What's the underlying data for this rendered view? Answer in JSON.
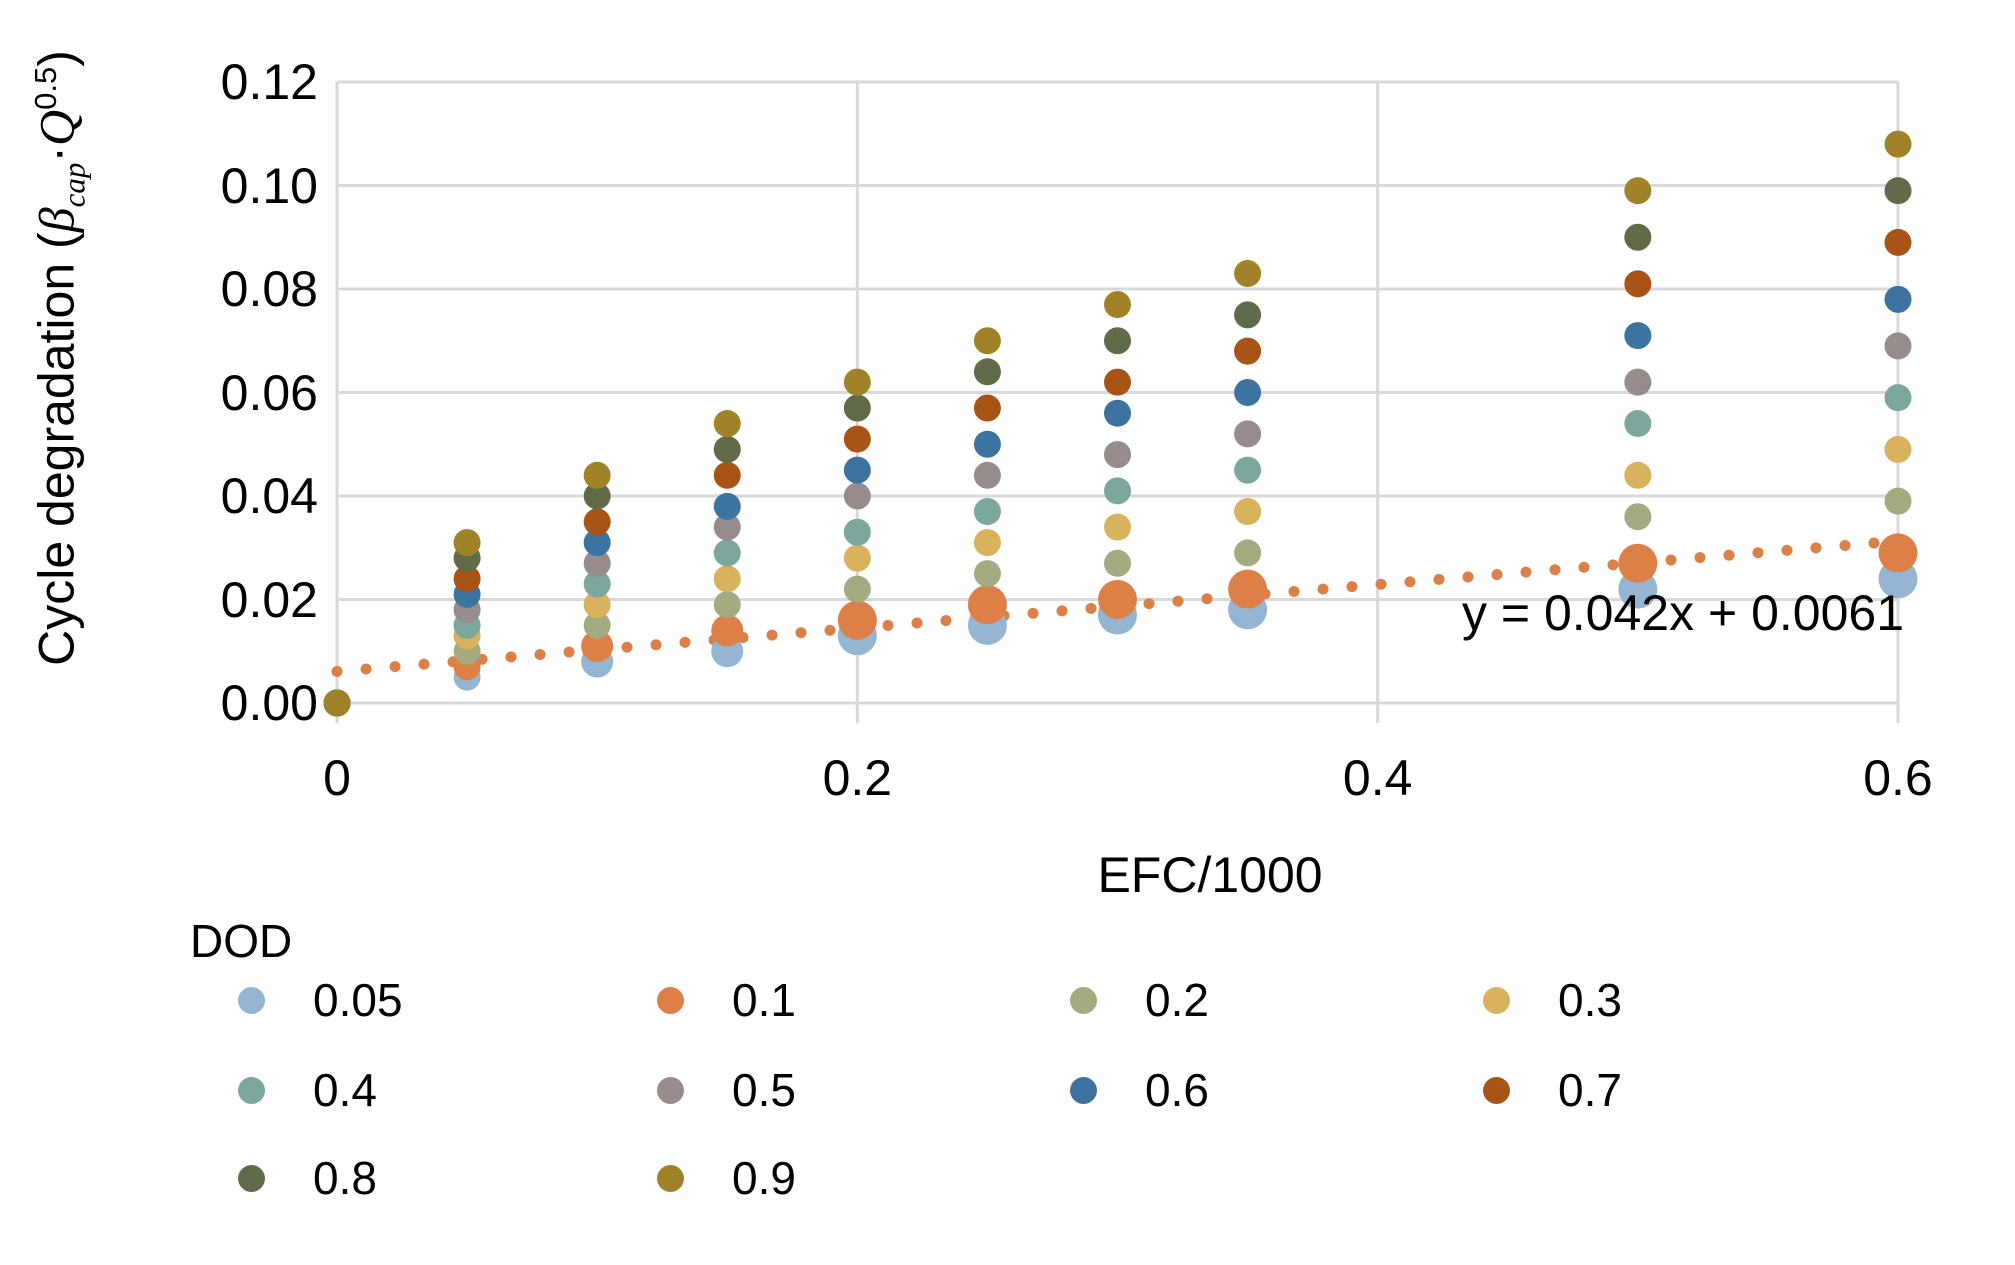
{
  "chart_data": {
    "type": "scatter",
    "xlabel": "EFC/1000",
    "ylabel": {
      "prefix": "Cycle degradation (",
      "beta": "β",
      "sub": "cap",
      "dot": "·",
      "q": "Q",
      "sup": "0.5",
      "suffix": ")"
    },
    "xlim": [
      0,
      0.6
    ],
    "ylim": [
      0,
      0.12
    ],
    "grid": true,
    "gridline_color": "#D9D9D9",
    "x_ticks": [
      [
        0,
        "0"
      ],
      [
        0.2,
        "0.2"
      ],
      [
        0.4,
        "0.4"
      ],
      [
        0.6,
        "0.6"
      ]
    ],
    "y_ticks": [
      [
        0,
        "0.00"
      ],
      [
        0.02,
        "0.02"
      ],
      [
        0.04,
        "0.04"
      ],
      [
        0.06,
        "0.06"
      ],
      [
        0.08,
        "0.08"
      ],
      [
        0.1,
        "0.10"
      ],
      [
        0.12,
        "0.12"
      ]
    ],
    "x": [
      0,
      0.05,
      0.1,
      0.15,
      0.2,
      0.25,
      0.3,
      0.35,
      0.5,
      0.6
    ],
    "series": [
      {
        "name": "0.05",
        "color": "#94B6D2",
        "marker": "large",
        "values": [
          0,
          0.005,
          0.008,
          0.01,
          0.013,
          0.015,
          0.017,
          0.018,
          0.022,
          0.024
        ]
      },
      {
        "name": "0.1",
        "color": "#DD8047",
        "marker": "large",
        "values": [
          0,
          0.007,
          0.011,
          0.014,
          0.016,
          0.019,
          0.02,
          0.022,
          0.027,
          0.029
        ]
      },
      {
        "name": "0.2",
        "color": "#A5AB81",
        "marker": "small",
        "values": [
          0,
          0.01,
          0.015,
          0.019,
          0.022,
          0.025,
          0.027,
          0.029,
          0.036,
          0.039
        ]
      },
      {
        "name": "0.3",
        "color": "#D8B25C",
        "marker": "small",
        "values": [
          0,
          0.013,
          0.019,
          0.024,
          0.028,
          0.031,
          0.034,
          0.037,
          0.044,
          0.049
        ]
      },
      {
        "name": "0.4",
        "color": "#7BA79D",
        "marker": "small",
        "values": [
          0,
          0.015,
          0.023,
          0.029,
          0.033,
          0.037,
          0.041,
          0.045,
          0.054,
          0.059
        ]
      },
      {
        "name": "0.5",
        "color": "#968C8C",
        "marker": "small",
        "values": [
          0,
          0.018,
          0.027,
          0.034,
          0.04,
          0.044,
          0.048,
          0.052,
          0.062,
          0.069
        ]
      },
      {
        "name": "0.6",
        "color": "#3C73A1",
        "marker": "small",
        "values": [
          0,
          0.021,
          0.031,
          0.038,
          0.045,
          0.05,
          0.056,
          0.06,
          0.071,
          0.078
        ]
      },
      {
        "name": "0.7",
        "color": "#A85417",
        "marker": "small",
        "values": [
          0,
          0.024,
          0.035,
          0.044,
          0.051,
          0.057,
          0.062,
          0.068,
          0.081,
          0.089
        ]
      },
      {
        "name": "0.8",
        "color": "#5F6B49",
        "marker": "small",
        "values": [
          0,
          0.028,
          0.04,
          0.049,
          0.057,
          0.064,
          0.07,
          0.075,
          0.09,
          0.099
        ]
      },
      {
        "name": "0.9",
        "color": "#A08329",
        "marker": "small",
        "values": [
          0,
          0.031,
          0.044,
          0.054,
          0.062,
          0.07,
          0.077,
          0.083,
          0.099,
          0.108
        ]
      }
    ],
    "trendline": {
      "equation": "y = 0.042x + 0.0061",
      "slope": 0.042,
      "intercept": 0.0061,
      "x_range": [
        0,
        0.6
      ],
      "color": "#DD8047",
      "style": "dotted"
    },
    "legend_position": "bottom-left"
  },
  "legend": {
    "title": "DOD"
  }
}
